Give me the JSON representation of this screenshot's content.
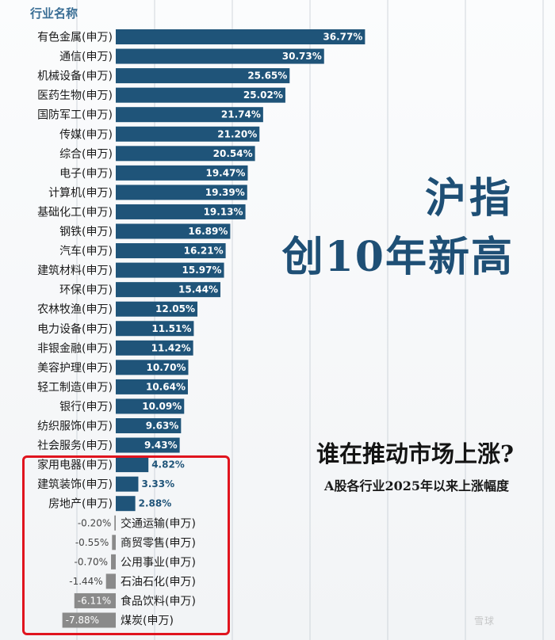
{
  "header_label": "行业名称",
  "headline_line1": "沪指",
  "headline_line2": "创10年新高",
  "subtitle_question": "谁在推动市场上涨?",
  "subtitle_description": "A股各行业2025年以来上涨幅度",
  "colors": {
    "positive_bar": "#1f5479",
    "negative_bar": "#8a8a8a",
    "highlight_border": "#e0141e",
    "headline": "#1e4f75"
  },
  "chart_data": {
    "type": "bar",
    "orientation": "horizontal",
    "unit": "%",
    "categories": [
      "有色金属(申万)",
      "通信(申万)",
      "机械设备(申万)",
      "医药生物(申万)",
      "国防军工(申万)",
      "传媒(申万)",
      "综合(申万)",
      "电子(申万)",
      "计算机(申万)",
      "基础化工(申万)",
      "钢铁(申万)",
      "汽车(申万)",
      "建筑材料(申万)",
      "环保(申万)",
      "农林牧渔(申万)",
      "电力设备(申万)",
      "非银金融(申万)",
      "美容护理(申万)",
      "轻工制造(申万)",
      "银行(申万)",
      "纺织服饰(申万)",
      "社会服务(申万)",
      "家用电器(申万)",
      "建筑装饰(申万)",
      "房地产(申万)",
      "交通运输(申万)",
      "商贸零售(申万)",
      "公用事业(申万)",
      "石油石化(申万)",
      "食品饮料(申万)",
      "煤炭(申万)"
    ],
    "values": [
      36.77,
      30.73,
      25.65,
      25.02,
      21.74,
      21.2,
      20.54,
      19.47,
      19.39,
      19.13,
      16.89,
      16.21,
      15.97,
      15.44,
      12.05,
      11.51,
      11.42,
      10.7,
      10.64,
      10.09,
      9.63,
      9.43,
      4.82,
      3.33,
      2.88,
      -0.2,
      -0.55,
      -0.7,
      -1.44,
      -6.11,
      -7.88
    ],
    "value_labels": [
      "36.77%",
      "30.73%",
      "25.65%",
      "25.02%",
      "21.74%",
      "21.20%",
      "20.54%",
      "19.47%",
      "19.39%",
      "19.13%",
      "16.89%",
      "16.21%",
      "15.97%",
      "15.44%",
      "12.05%",
      "11.51%",
      "11.42%",
      "10.70%",
      "10.64%",
      "10.09%",
      "9.63%",
      "9.43%",
      "4.82%",
      "3.33%",
      "2.88%",
      "-0.20%",
      "-0.55%",
      "-0.70%",
      "-1.44%",
      "-6.11%",
      "-7.88%"
    ],
    "highlighted_categories": [
      "家用电器(申万)",
      "建筑装饰(申万)",
      "房地产(申万)",
      "交通运输(申万)",
      "商贸零售(申万)",
      "公用事业(申万)",
      "石油石化(申万)",
      "食品饮料(申万)",
      "煤炭(申万)"
    ],
    "grid": false,
    "legend": "none"
  },
  "watermark": "雪球"
}
